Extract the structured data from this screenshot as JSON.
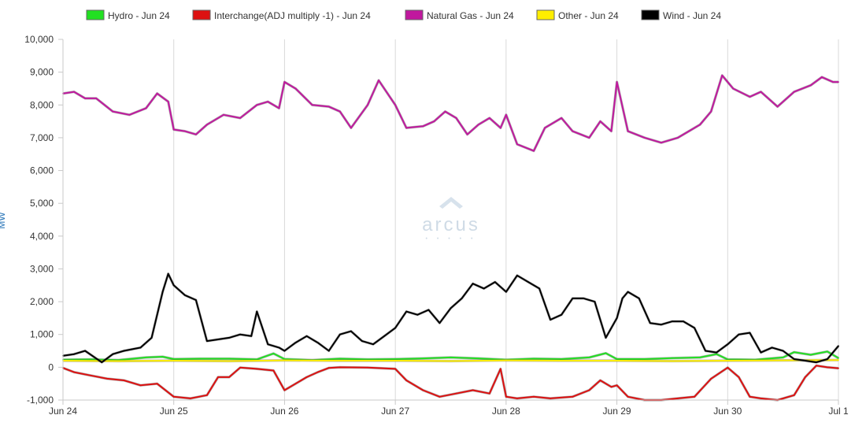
{
  "chart_data": {
    "type": "line",
    "title": "",
    "ylabel": "MW",
    "ylim": [
      -1000,
      10000
    ],
    "y_ticks": [
      -1000,
      0,
      1000,
      2000,
      3000,
      4000,
      5000,
      6000,
      7000,
      8000,
      9000,
      10000
    ],
    "y_tick_labels": [
      "-1,000",
      "0",
      "1,000",
      "2,000",
      "3,000",
      "4,000",
      "5,000",
      "6,000",
      "7,000",
      "8,000",
      "9,000",
      "10,000"
    ],
    "xlim": [
      0,
      7
    ],
    "x_ticks": [
      0,
      1,
      2,
      3,
      4,
      5,
      6,
      7
    ],
    "x_tick_labels": [
      "Jun 24",
      "Jun 25",
      "Jun 26",
      "Jun 27",
      "Jun 28",
      "Jun 29",
      "Jun 30",
      "Jul 1"
    ],
    "grid": "vertical",
    "legend_position": "top",
    "watermark": "arcus",
    "series": [
      {
        "name": "Hydro - Jun 24",
        "color": "#22e022",
        "x": [
          0,
          0.25,
          0.5,
          0.75,
          0.9,
          1,
          1.25,
          1.5,
          1.75,
          1.9,
          2,
          2.25,
          2.5,
          2.75,
          3,
          3.25,
          3.5,
          3.75,
          4,
          4.25,
          4.5,
          4.75,
          4.9,
          5,
          5.25,
          5.5,
          5.75,
          5.9,
          6,
          6.25,
          6.5,
          6.6,
          6.75,
          6.9,
          7
        ],
        "values": [
          230,
          240,
          220,
          300,
          320,
          250,
          260,
          260,
          240,
          420,
          250,
          220,
          260,
          240,
          250,
          270,
          300,
          270,
          230,
          260,
          250,
          300,
          430,
          250,
          250,
          280,
          300,
          400,
          240,
          230,
          300,
          460,
          380,
          480,
          280
        ]
      },
      {
        "name": "Interchange(ADJ multiply -1) - Jun 24",
        "color": "#dd1111",
        "x": [
          0,
          0.1,
          0.25,
          0.4,
          0.55,
          0.7,
          0.85,
          1,
          1.15,
          1.3,
          1.4,
          1.5,
          1.6,
          1.75,
          1.9,
          2,
          2.1,
          2.2,
          2.3,
          2.4,
          2.5,
          2.75,
          3,
          3.1,
          3.25,
          3.4,
          3.55,
          3.7,
          3.85,
          3.95,
          4,
          4.1,
          4.25,
          4.4,
          4.6,
          4.75,
          4.85,
          4.95,
          5,
          5.1,
          5.25,
          5.4,
          5.55,
          5.7,
          5.85,
          6,
          6.1,
          6.2,
          6.3,
          6.45,
          6.6,
          6.7,
          6.8,
          6.9,
          7
        ],
        "values": [
          -20,
          -150,
          -250,
          -350,
          -400,
          -550,
          -500,
          -900,
          -950,
          -850,
          -300,
          -300,
          -10,
          -50,
          -100,
          -700,
          -500,
          -300,
          -150,
          -20,
          0,
          -10,
          -50,
          -400,
          -700,
          -900,
          -800,
          -700,
          -800,
          -50,
          -900,
          -950,
          -900,
          -950,
          -900,
          -700,
          -400,
          -600,
          -550,
          -900,
          -1000,
          -1000,
          -950,
          -900,
          -350,
          -10,
          -300,
          -900,
          -950,
          -1000,
          -850,
          -300,
          50,
          0,
          -30
        ]
      },
      {
        "name": "Natural Gas - Jun 24",
        "color": "#c0189e",
        "x": [
          0,
          0.1,
          0.2,
          0.3,
          0.45,
          0.6,
          0.75,
          0.85,
          0.95,
          1,
          1.1,
          1.2,
          1.3,
          1.45,
          1.6,
          1.75,
          1.85,
          1.95,
          2,
          2.1,
          2.25,
          2.4,
          2.5,
          2.6,
          2.75,
          2.85,
          3,
          3.1,
          3.25,
          3.35,
          3.45,
          3.55,
          3.65,
          3.75,
          3.85,
          3.95,
          4,
          4.1,
          4.25,
          4.35,
          4.5,
          4.6,
          4.75,
          4.85,
          4.95,
          5,
          5.1,
          5.25,
          5.4,
          5.55,
          5.65,
          5.75,
          5.85,
          5.95,
          6.05,
          6.2,
          6.3,
          6.45,
          6.6,
          6.75,
          6.85,
          6.95,
          7
        ],
        "values": [
          8350,
          8400,
          8200,
          8200,
          7800,
          7700,
          7900,
          8350,
          8100,
          7250,
          7200,
          7100,
          7400,
          7700,
          7600,
          8000,
          8100,
          7900,
          8700,
          8500,
          8000,
          7950,
          7800,
          7300,
          8000,
          8750,
          8000,
          7300,
          7350,
          7500,
          7800,
          7600,
          7100,
          7400,
          7600,
          7300,
          7700,
          6800,
          6600,
          7300,
          7600,
          7200,
          7000,
          7500,
          7200,
          8700,
          7200,
          7000,
          6850,
          7000,
          7200,
          7400,
          7800,
          8900,
          8500,
          8250,
          8400,
          7950,
          8400,
          8600,
          8850,
          8700,
          8700
        ]
      },
      {
        "name": "Other - Jun 24",
        "color": "#ffee00",
        "x": [
          0,
          0.5,
          1,
          1.5,
          2,
          2.5,
          3,
          3.5,
          4,
          4.5,
          5,
          5.5,
          6,
          6.5,
          7
        ],
        "values": [
          200,
          190,
          200,
          190,
          210,
          200,
          200,
          190,
          210,
          200,
          200,
          190,
          200,
          210,
          220
        ]
      },
      {
        "name": "Wind - Jun 24",
        "color": "#000000",
        "x": [
          0,
          0.1,
          0.2,
          0.35,
          0.45,
          0.55,
          0.7,
          0.8,
          0.9,
          0.95,
          1,
          1.1,
          1.2,
          1.3,
          1.4,
          1.5,
          1.6,
          1.7,
          1.75,
          1.85,
          1.95,
          2,
          2.1,
          2.2,
          2.3,
          2.4,
          2.5,
          2.6,
          2.7,
          2.8,
          2.9,
          3,
          3.1,
          3.2,
          3.3,
          3.4,
          3.5,
          3.6,
          3.7,
          3.8,
          3.9,
          4,
          4.1,
          4.2,
          4.3,
          4.4,
          4.5,
          4.6,
          4.7,
          4.8,
          4.9,
          5,
          5.05,
          5.1,
          5.2,
          5.3,
          5.4,
          5.5,
          5.6,
          5.7,
          5.8,
          5.9,
          6,
          6.1,
          6.2,
          6.3,
          6.4,
          6.5,
          6.6,
          6.7,
          6.8,
          6.9,
          7
        ],
        "values": [
          350,
          400,
          500,
          150,
          400,
          500,
          600,
          900,
          2300,
          2850,
          2500,
          2200,
          2050,
          800,
          850,
          900,
          1000,
          950,
          1700,
          700,
          600,
          500,
          750,
          950,
          750,
          500,
          1000,
          1100,
          800,
          700,
          950,
          1200,
          1700,
          1600,
          1750,
          1350,
          1800,
          2100,
          2550,
          2400,
          2600,
          2300,
          2800,
          2600,
          2400,
          1450,
          1600,
          2100,
          2100,
          2000,
          900,
          1500,
          2100,
          2300,
          2100,
          1350,
          1300,
          1400,
          1400,
          1200,
          500,
          450,
          700,
          1000,
          1050,
          450,
          600,
          500,
          250,
          200,
          150,
          250,
          650
        ]
      }
    ]
  }
}
